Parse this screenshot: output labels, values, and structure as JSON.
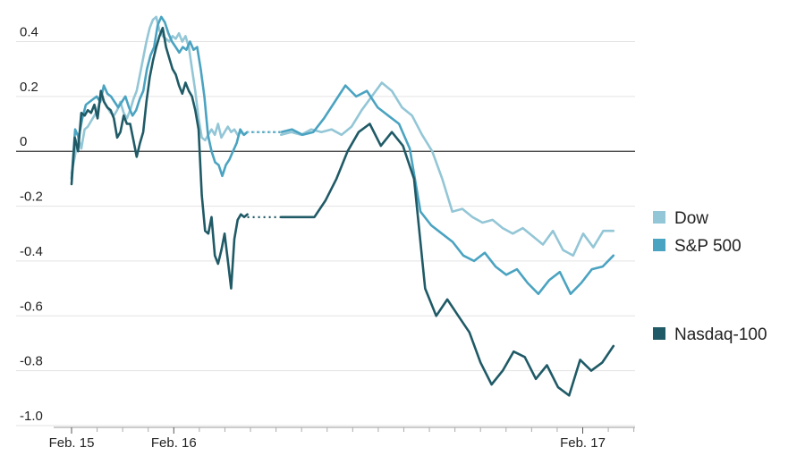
{
  "chart_data": {
    "type": "line",
    "title": "",
    "xlabel": "",
    "ylabel": "",
    "ylim": [
      -1.0,
      0.5
    ],
    "y_ticks": [
      {
        "value": 0.4,
        "label": "0.4"
      },
      {
        "value": 0.2,
        "label": "0.2"
      },
      {
        "value": 0.0,
        "label": "0"
      },
      {
        "value": -0.2,
        "label": "-0.2"
      },
      {
        "value": -0.4,
        "label": "-0.4"
      },
      {
        "value": -0.6,
        "label": "-0.6"
      },
      {
        "value": -0.8,
        "label": "-0.8"
      },
      {
        "value": -1.0,
        "label": "-1.0"
      }
    ],
    "x_ticks": [
      {
        "t": 0,
        "label": "Feb. 15"
      },
      {
        "t": 1,
        "label": "Feb. 16"
      },
      {
        "t": 5,
        "label": "Feb. 17"
      }
    ],
    "x_range": [
      0,
      5.5
    ],
    "grid": true,
    "zero_line": true,
    "legend_position": "right",
    "series": [
      {
        "name": "Dow",
        "color": "#93c6d6",
        "values": [
          [
            -0.08,
            -0.02,
            0.05,
            0.01,
            0.08,
            0.09,
            0.11,
            0.13,
            0.15,
            0.2,
            0.18,
            0.16,
            0.14,
            0.13,
            0.15,
            0.18,
            0.14,
            0.12,
            0.15,
            0.19,
            0.22,
            0.28,
            0.34,
            0.4,
            0.45,
            0.48,
            0.49,
            0.44,
            0.42,
            0.41,
            0.4,
            0.42,
            0.41,
            0.43,
            0.4,
            0.42,
            0.38,
            0.3,
            0.22,
            0.12,
            0.05,
            0.04,
            0.06,
            0.08,
            0.06,
            0.1,
            0.05,
            0.07,
            0.09,
            0.07,
            0.08,
            0.06,
            0.07,
            0.06,
            0.07
          ],
          [
            0.06,
            0.07,
            0.06,
            0.08,
            0.07,
            0.08,
            0.06,
            0.09,
            0.15,
            0.2,
            0.25,
            0.22,
            0.16,
            0.13,
            0.06,
            0.0,
            -0.1,
            -0.22,
            -0.21,
            -0.24,
            -0.26,
            -0.25,
            -0.28,
            -0.3,
            -0.28,
            -0.31,
            -0.34,
            -0.29,
            -0.36,
            -0.38,
            -0.3,
            -0.35,
            -0.29,
            -0.29
          ]
        ]
      },
      {
        "name": "S&P 500",
        "color": "#4aa3c1",
        "values": [
          [
            -0.1,
            0.08,
            0.05,
            0.12,
            0.17,
            0.18,
            0.19,
            0.2,
            0.18,
            0.24,
            0.21,
            0.2,
            0.18,
            0.16,
            0.18,
            0.2,
            0.16,
            0.13,
            0.15,
            0.19,
            0.22,
            0.3,
            0.35,
            0.38,
            0.46,
            0.49,
            0.47,
            0.43,
            0.4,
            0.38,
            0.36,
            0.38,
            0.37,
            0.4,
            0.37,
            0.38,
            0.3,
            0.2,
            0.06,
            0.0,
            -0.04,
            -0.05,
            -0.09,
            -0.05,
            -0.03,
            0.0,
            0.03,
            0.08,
            0.06,
            0.07
          ],
          [
            0.07,
            0.08,
            0.06,
            0.07,
            0.12,
            0.18,
            0.24,
            0.2,
            0.22,
            0.16,
            0.13,
            0.1,
            0.01,
            -0.22,
            -0.27,
            -0.3,
            -0.33,
            -0.38,
            -0.4,
            -0.37,
            -0.42,
            -0.45,
            -0.43,
            -0.48,
            -0.52,
            -0.47,
            -0.44,
            -0.52,
            -0.48,
            -0.43,
            -0.42,
            -0.38
          ]
        ]
      },
      {
        "name": "Nasdaq-100",
        "color": "#1f5a66",
        "values": [
          [
            -0.12,
            0.05,
            0.0,
            0.14,
            0.13,
            0.15,
            0.14,
            0.17,
            0.12,
            0.22,
            0.18,
            0.16,
            0.15,
            0.12,
            0.05,
            0.07,
            0.13,
            0.1,
            0.1,
            0.04,
            -0.02,
            0.03,
            0.07,
            0.18,
            0.27,
            0.33,
            0.38,
            0.42,
            0.45,
            0.38,
            0.34,
            0.3,
            0.28,
            0.24,
            0.21,
            0.25,
            0.22,
            0.2,
            0.15,
            0.08,
            -0.16,
            -0.29,
            -0.3,
            -0.24,
            -0.38,
            -0.41,
            -0.36,
            -0.3,
            -0.4,
            -0.5,
            -0.32,
            -0.25,
            -0.23,
            -0.24,
            -0.23
          ],
          [
            -0.24,
            -0.24,
            -0.24,
            -0.24,
            -0.18,
            -0.1,
            0.0,
            0.07,
            0.1,
            0.02,
            0.07,
            0.02,
            -0.1,
            -0.5,
            -0.6,
            -0.54,
            -0.6,
            -0.66,
            -0.77,
            -0.85,
            -0.8,
            -0.73,
            -0.75,
            -0.83,
            -0.78,
            -0.86,
            -0.89,
            -0.76,
            -0.8,
            -0.77,
            -0.71
          ]
        ]
      }
    ],
    "gap_connectors": [
      {
        "series": "Dow",
        "from": 1.72,
        "to": 2.05,
        "value": 0.07
      },
      {
        "series": "S&P 500",
        "from": 1.76,
        "to": 2.05,
        "value": 0.07
      },
      {
        "series": "Nasdaq-100",
        "from": 1.72,
        "to": 2.05,
        "value": -0.24
      }
    ],
    "segment_ranges": [
      [
        0.0,
        1.72
      ],
      [
        2.05,
        5.3
      ]
    ]
  }
}
